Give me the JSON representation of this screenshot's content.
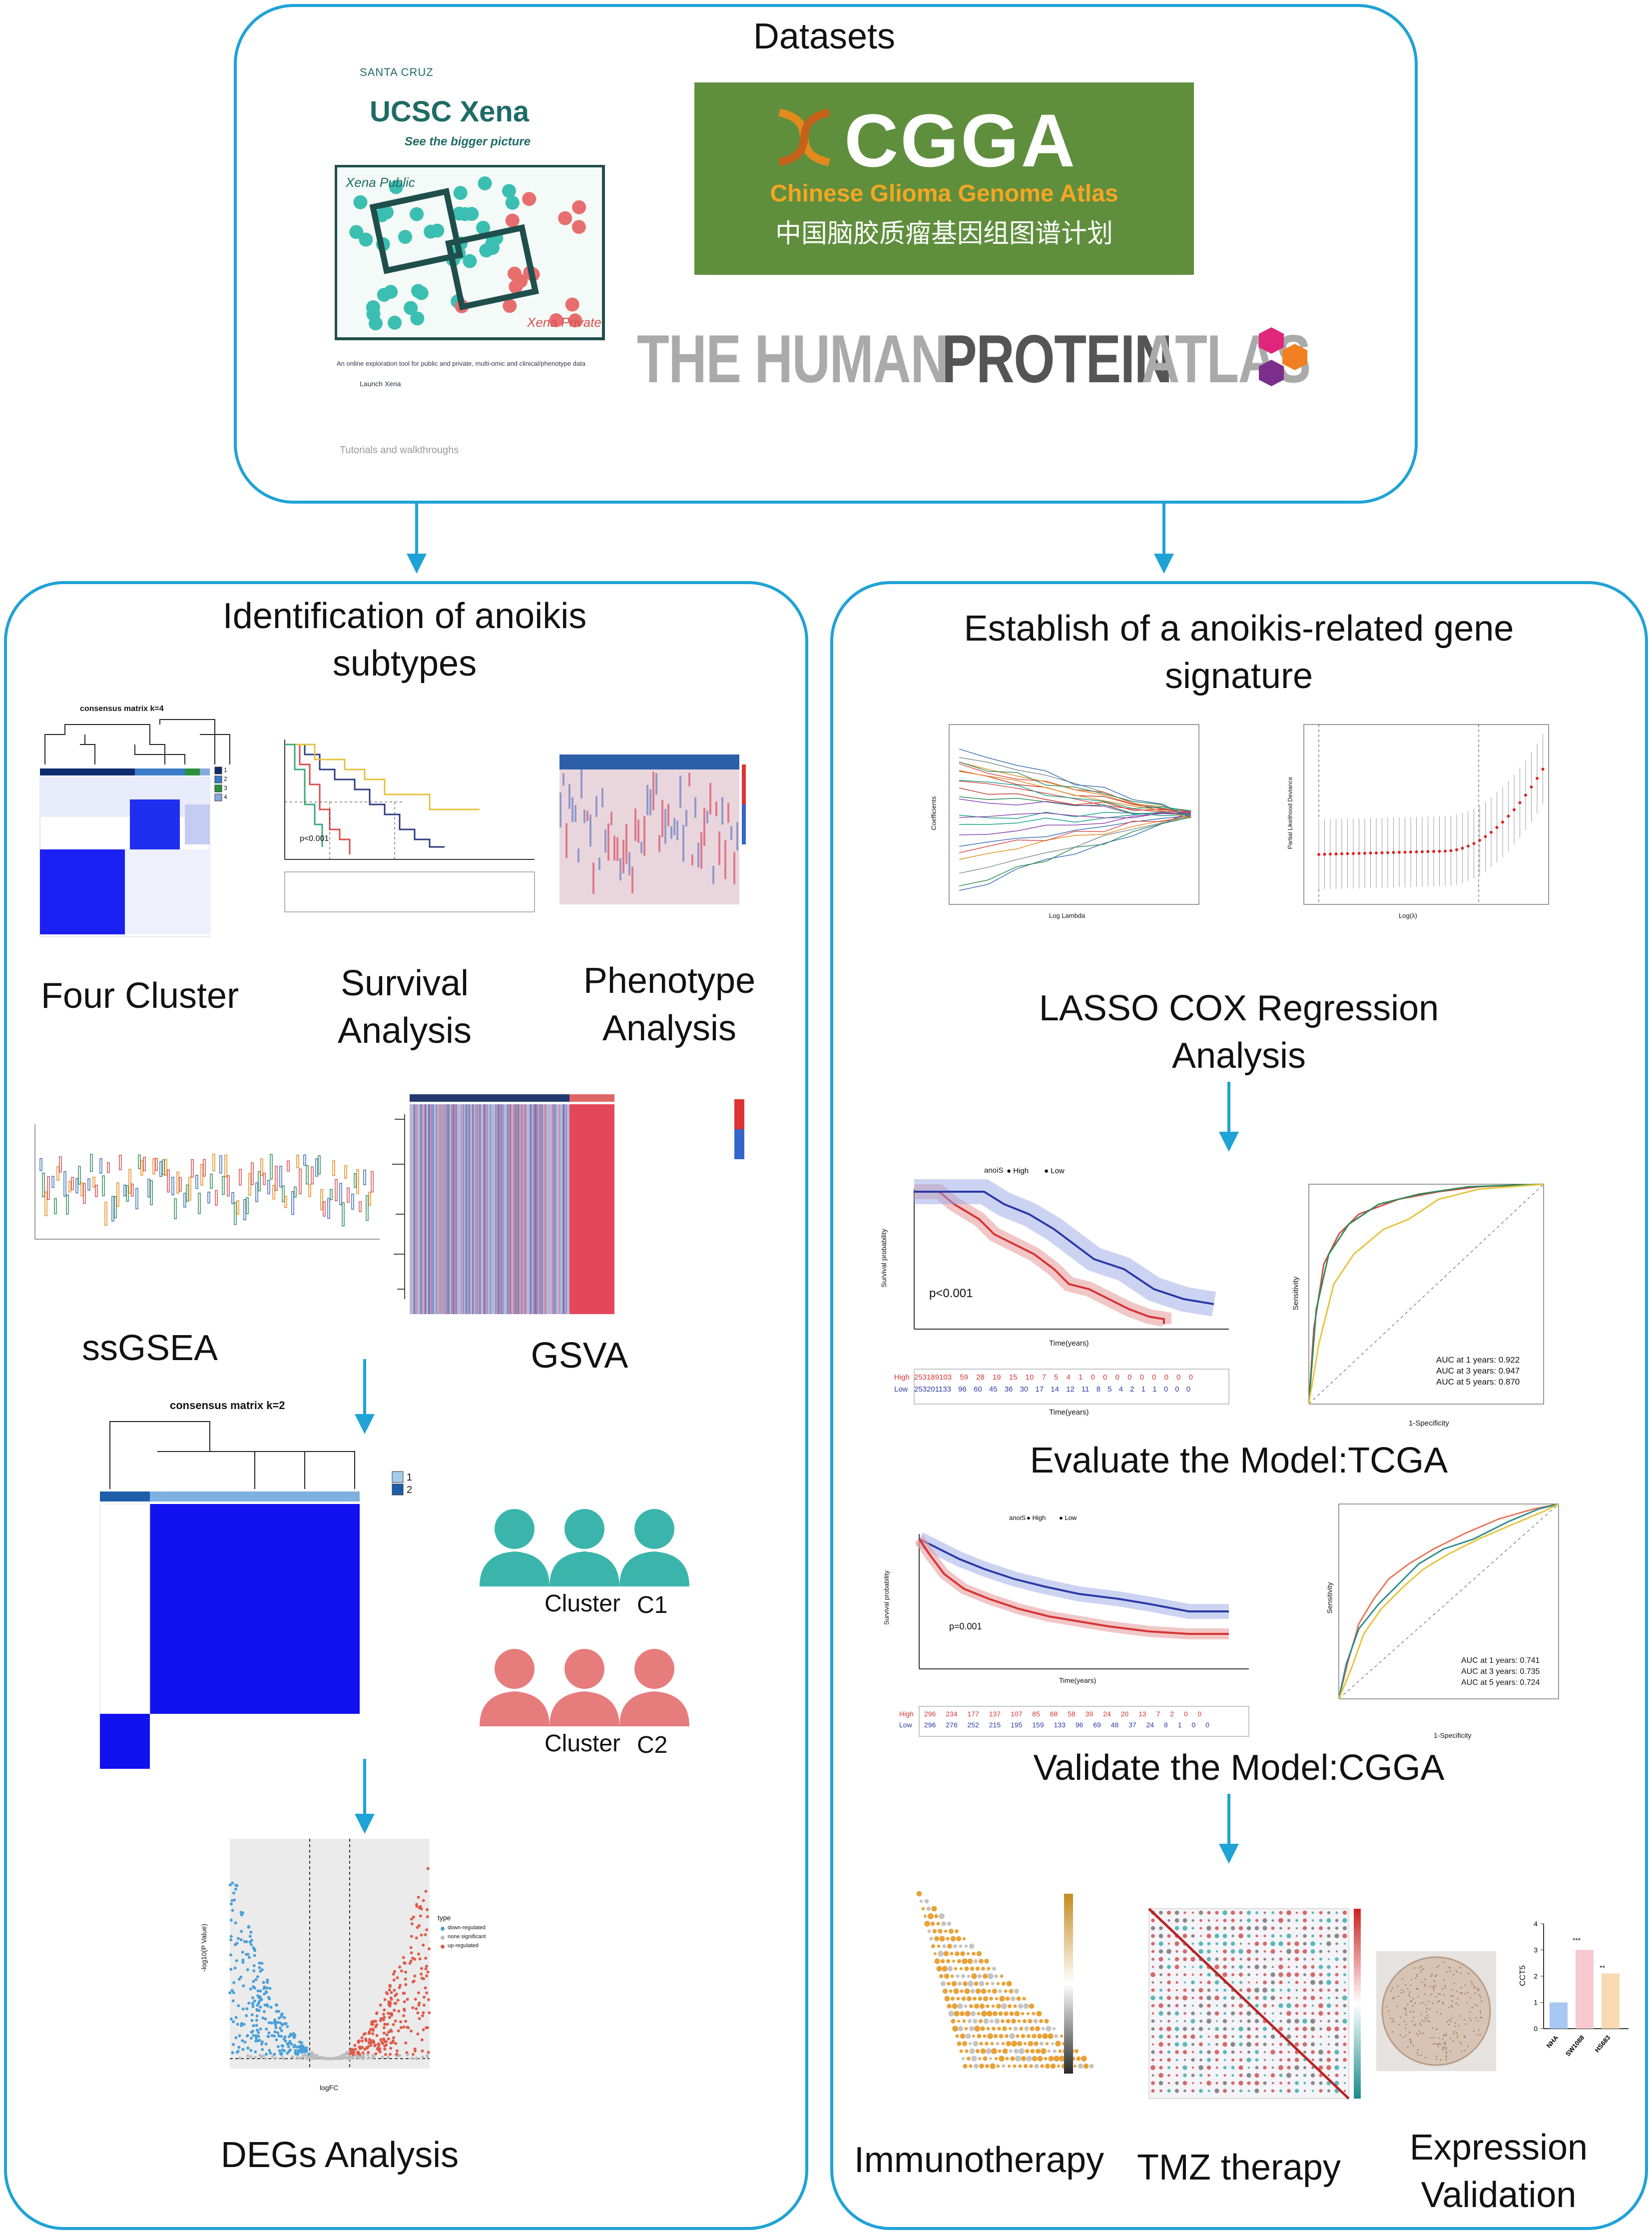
{
  "datasets": {
    "title": "Datasets",
    "ucsc": {
      "org": "SANTA CRUZ",
      "title": "UCSC Xena",
      "tagline": "See the bigger picture",
      "public_label": "Xena Public",
      "private_label": "Xena Private",
      "desc": "An online exploration tool for public and private, multi-omic and clinical/phenotype data",
      "launch": "Launch Xena",
      "tutorials": "Tutorials and walkthroughs"
    },
    "cgga": {
      "name": "CGGA",
      "en": "Chinese Glioma Genome Atlas",
      "cn": "中国脑胶质瘤基因组图谱计划"
    },
    "hpa": {
      "part1": "THE HUMAN",
      "part2": "PROTEIN",
      "part3": "ATLAS"
    }
  },
  "left": {
    "title_line1": "Identification of anoikis",
    "title_line2": "subtypes",
    "four_cluster": "Four Cluster",
    "survival_line1": "Survival",
    "survival_line2": "Analysis",
    "phenotype_line1": "Phenotype",
    "phenotype_line2": "Analysis",
    "ssgsea": "ssGSEA",
    "gsva": "GSVA",
    "consensus_k4": "consensus matrix k=4",
    "consensus_k2": "consensus matrix k=2",
    "cluster_c1_word": "Cluster",
    "cluster_c1_id": "C1",
    "cluster_c2_word": "Cluster",
    "cluster_c2_id": "C2",
    "degs": "DEGs Analysis",
    "pvalue": "p<0.001",
    "volcano_xlabel": "logFC",
    "volcano_ylabel": "-log10(P Value)",
    "volcano_legend_title": "type",
    "volcano_legend": [
      "down-regulated",
      "none significant",
      "up-regulated"
    ],
    "legend_k4": [
      "1",
      "2",
      "3",
      "4"
    ],
    "legend_k2": [
      "1",
      "2"
    ]
  },
  "right": {
    "title_line1": "Establish of a anoikis-related gene",
    "title_line2": "signature",
    "lasso_line1": "LASSO COX Regression",
    "lasso_line2": "Analysis",
    "lasso_xlabel1": "Log Lambda",
    "lasso_ylabel1": "Coefficients",
    "lasso_xlabel2": "Log(λ)",
    "lasso_ylabel2": "Partial Likelihood Deviance",
    "evaluate": "Evaluate the Model:TCGA",
    "validate": "Validate the Model:CGGA",
    "tcga_p": "p<0.001",
    "cgga_p": "p=0.001",
    "surv_ylabel": "Survival probability",
    "surv_xlabel": "Time(years)",
    "risk_legend_title": "anoiS",
    "risk_high": "High",
    "risk_low": "Low",
    "roc_xlabel": "1-Specificity",
    "roc_ylabel": "Sensitivity",
    "tcga_auc": [
      "AUC at 1 years: 0.922",
      "AUC at 3 years: 0.947",
      "AUC at 5 years: 0.870"
    ],
    "cgga_auc": [
      "AUC at 1 years: 0.741",
      "AUC at 3 years: 0.735",
      "AUC at 5 years: 0.724"
    ],
    "tcga_risk_high": "253189103 59 28 19 15 10 7 5 4 1 0 0 0 0 0 0 0 0 0",
    "tcga_risk_low": "253201133 96 60 45 36 30 17 14 12 11 8 5 4 2 1 1 0 0 0",
    "cgga_risk_high": "296 234 177 137 107 85 68 58 39 24 20 13 7 2 0 0",
    "cgga_risk_low": "296 276 252 215 195 159 133 96 69 48 37 24 8 1 0 0",
    "immunotherapy": "Immunotherapy",
    "tmz": "TMZ therapy",
    "expr_line1": "Expression",
    "expr_line2": "Validation",
    "bar_ylabel": "CCT5",
    "bar_sig": [
      "***",
      "**"
    ]
  },
  "chart_data": {
    "type": "bar",
    "categories": [
      "NHA",
      "SW1088",
      "HS683"
    ],
    "values": [
      1.0,
      3.0,
      2.1
    ],
    "ylabel": "CCT5",
    "ylim": [
      0,
      4
    ],
    "colors": [
      "#a8c8f2",
      "#f8c8cf",
      "#f8d9b0"
    ]
  }
}
